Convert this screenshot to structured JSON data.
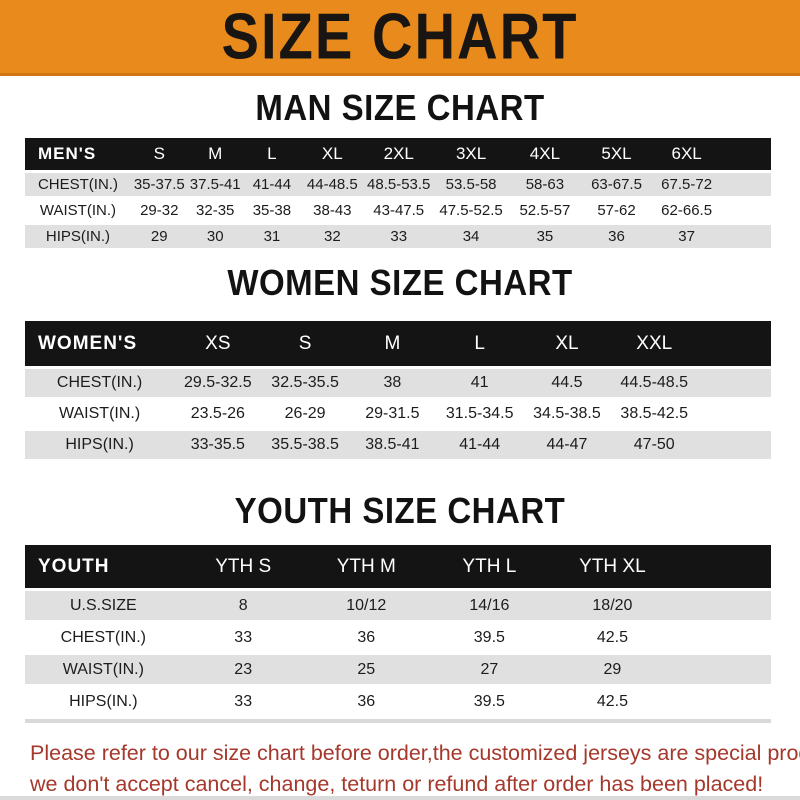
{
  "banner": {
    "title": "SIZE CHART",
    "bg_color": "#E88A1C"
  },
  "sections": [
    {
      "heading": "MAN SIZE CHART",
      "group_label": "MEN'S",
      "columns": [
        "S",
        "M",
        "L",
        "XL",
        "2XL",
        "3XL",
        "4XL",
        "5XL",
        "6XL"
      ],
      "rows": [
        {
          "label": "CHEST(IN.)",
          "values": [
            "35-37.5",
            "37.5-41",
            "41-44",
            "44-48.5",
            "48.5-53.5",
            "53.5-58",
            "58-63",
            "63-67.5",
            "67.5-72"
          ]
        },
        {
          "label": "WAIST(IN.)",
          "values": [
            "29-32",
            "32-35",
            "35-38",
            "38-43",
            "43-47.5",
            "47.5-52.5",
            "52.5-57",
            "57-62",
            "62-66.5"
          ]
        },
        {
          "label": "HIPS(IN.)",
          "values": [
            "29",
            "30",
            "31",
            "32",
            "33",
            "34",
            "35",
            "36",
            "37"
          ]
        }
      ]
    },
    {
      "heading": "WOMEN SIZE CHART",
      "group_label": "WOMEN'S",
      "columns": [
        "XS",
        "S",
        "M",
        "L",
        "XL",
        "XXL"
      ],
      "rows": [
        {
          "label": "CHEST(IN.)",
          "values": [
            "29.5-32.5",
            "32.5-35.5",
            "38",
            "41",
            "44.5",
            "44.5-48.5"
          ]
        },
        {
          "label": "WAIST(IN.)",
          "values": [
            "23.5-26",
            "26-29",
            "29-31.5",
            "31.5-34.5",
            "34.5-38.5",
            "38.5-42.5"
          ]
        },
        {
          "label": "HIPS(IN.)",
          "values": [
            "33-35.5",
            "35.5-38.5",
            "38.5-41",
            "41-44",
            "44-47",
            "47-50"
          ]
        }
      ]
    },
    {
      "heading": "YOUTH SIZE CHART",
      "group_label": "YOUTH",
      "columns": [
        "YTH S",
        "YTH M",
        "YTH L",
        "YTH XL"
      ],
      "rows": [
        {
          "label": "U.S.SIZE",
          "values": [
            "8",
            "10/12",
            "14/16",
            "18/20"
          ]
        },
        {
          "label": "CHEST(IN.)",
          "values": [
            "33",
            "36",
            "39.5",
            "42.5"
          ]
        },
        {
          "label": "WAIST(IN.)",
          "values": [
            "23",
            "25",
            "27",
            "29"
          ]
        },
        {
          "label": "HIPS(IN.)",
          "values": [
            "33",
            "36",
            "39.5",
            "42.5"
          ]
        }
      ]
    }
  ],
  "footer": {
    "line1": "Please refer to our size chart before order,the customized jerseys are special products,",
    "line2": "we don't accept cancel, change, teturn or refund after order has been placed!",
    "text_color": "#A5382B"
  }
}
